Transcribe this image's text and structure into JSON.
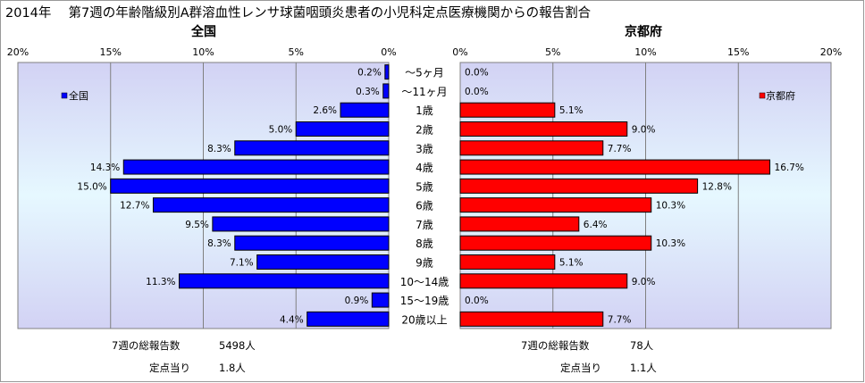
{
  "title": "2014年　 第7週の年齢階級別A群溶血性レンサ球菌咽頭炎患者の小児科定点医療機関からの報告割合",
  "chart_data": {
    "type": "bar",
    "categories": [
      "～5ヶ月",
      "～11ヶ月",
      "1歳",
      "2歳",
      "3歳",
      "4歳",
      "5歳",
      "6歳",
      "7歳",
      "8歳",
      "9歳",
      "10～14歳",
      "15～19歳",
      "20歳以上"
    ],
    "left": {
      "title": "全国",
      "legend": "全国",
      "color": "#0000ff",
      "xlim": [
        0,
        20
      ],
      "ticks": [
        "20%",
        "15%",
        "10%",
        "5%",
        "0%"
      ],
      "tick_values": [
        20,
        15,
        10,
        5,
        0
      ],
      "values": [
        0.2,
        0.3,
        2.6,
        5.0,
        8.3,
        14.3,
        15.0,
        12.7,
        9.5,
        8.3,
        7.1,
        11.3,
        0.9,
        4.4
      ],
      "labels": [
        "0.2%",
        "0.3%",
        "2.6%",
        "5.0%",
        "8.3%",
        "14.3%",
        "15.0%",
        "12.7%",
        "9.5%",
        "8.3%",
        "7.1%",
        "11.3%",
        "0.9%",
        "4.4%"
      ]
    },
    "right": {
      "title": "京都府",
      "legend": "京都府",
      "color": "#ff0000",
      "xlim": [
        0,
        20
      ],
      "ticks": [
        "0%",
        "5%",
        "10%",
        "15%",
        "20%"
      ],
      "tick_values": [
        0,
        5,
        10,
        15,
        20
      ],
      "values": [
        0.0,
        0.0,
        5.1,
        9.0,
        7.7,
        16.7,
        12.8,
        10.3,
        6.4,
        10.3,
        5.1,
        9.0,
        0.0,
        7.7
      ],
      "labels": [
        "0.0%",
        "0.0%",
        "5.1%",
        "9.0%",
        "7.7%",
        "16.7%",
        "12.8%",
        "10.3%",
        "6.4%",
        "10.3%",
        "5.1%",
        "9.0%",
        "0.0%",
        "7.7%"
      ]
    }
  },
  "footer": {
    "left_total_label": "7週の総報告数",
    "left_total_value": "5498人",
    "left_per_label": "定点当り",
    "left_per_value": "1.8人",
    "right_total_label": "7週の総報告数",
    "right_total_value": "78人",
    "right_per_label": "定点当り",
    "right_per_value": "1.1人"
  }
}
